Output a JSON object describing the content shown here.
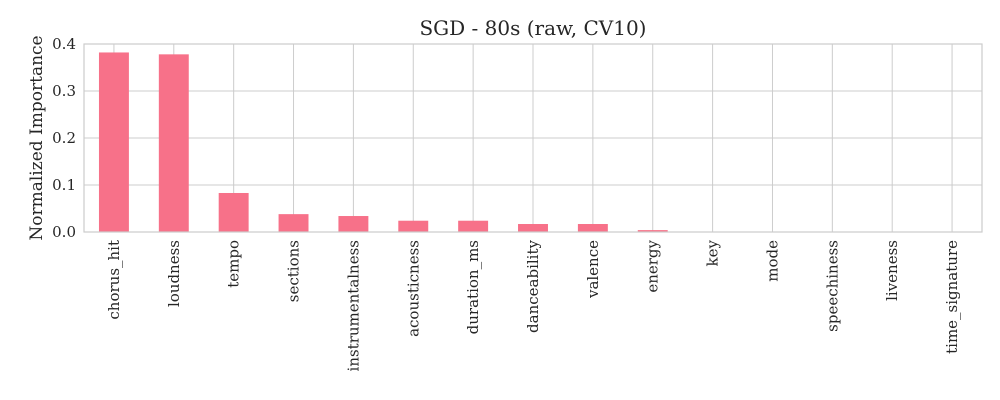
{
  "chart_data": {
    "type": "bar",
    "title": "SGD - 80s (raw, CV10)",
    "xlabel": "",
    "ylabel": "Normalized Importance",
    "categories": [
      "chorus_hit",
      "loudness",
      "tempo",
      "sections",
      "instrumentalness",
      "acousticness",
      "duration_ms",
      "danceability",
      "valence",
      "energy",
      "key",
      "mode",
      "speechiness",
      "liveness",
      "time_signature"
    ],
    "values": [
      0.382,
      0.378,
      0.083,
      0.038,
      0.034,
      0.024,
      0.024,
      0.017,
      0.017,
      0.004,
      0.0,
      0.0,
      0.0,
      0.0,
      0.0
    ],
    "ylim": [
      0,
      0.4
    ],
    "yticks": [
      "0.0",
      "0.1",
      "0.2",
      "0.3",
      "0.4"
    ],
    "grid": true,
    "bar_color": "#f77189"
  }
}
